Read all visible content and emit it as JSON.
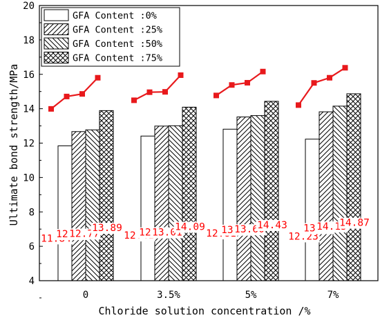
{
  "chart_data": {
    "type": "bar",
    "xlabel": "Chloride solution concentration /%",
    "ylabel": "Ultimate bond strength/MPa",
    "categories": [
      "0",
      "3.5%",
      "5%",
      "7%"
    ],
    "ylim": [
      4,
      20
    ],
    "yticks": [
      "4",
      "6",
      "8",
      "10",
      "12",
      "14",
      "16",
      "18",
      "20"
    ],
    "legend_position": "top-left",
    "series": [
      {
        "name": "GFA Content :0%",
        "pattern": "none",
        "values": [
          11.84,
          12.41,
          12.81,
          12.23
        ],
        "labels": [
          "11.84",
          "12.41",
          "12.81",
          "12.23"
        ]
      },
      {
        "name": "GFA Content :25%",
        "pattern": "forward-diagonal",
        "values": [
          12.67,
          12.99,
          13.52,
          13.82
        ],
        "labels": [
          "12.67",
          "12.99",
          "13.52",
          "13.82"
        ]
      },
      {
        "name": "GFA Content :50%",
        "pattern": "back-diagonal",
        "values": [
          12.77,
          13.01,
          13.6,
          14.15
        ],
        "labels": [
          "12.77",
          "13.01",
          "13.60",
          "14.15"
        ]
      },
      {
        "name": "GFA Content :75%",
        "pattern": "cross-hatch",
        "values": [
          13.89,
          14.09,
          14.43,
          14.87
        ],
        "labels": [
          "13.89",
          "14.09",
          "14.43",
          "14.87"
        ]
      }
    ],
    "trend_line": {
      "color": "#e8191c",
      "marker": "square",
      "values": [
        [
          13.99,
          14.71,
          14.86,
          15.8
        ],
        [
          14.49,
          14.96,
          14.98,
          15.95
        ],
        [
          14.77,
          15.38,
          15.51,
          16.16
        ],
        [
          14.21,
          15.5,
          15.8,
          16.38
        ]
      ]
    },
    "label_color": "#ff0000"
  }
}
